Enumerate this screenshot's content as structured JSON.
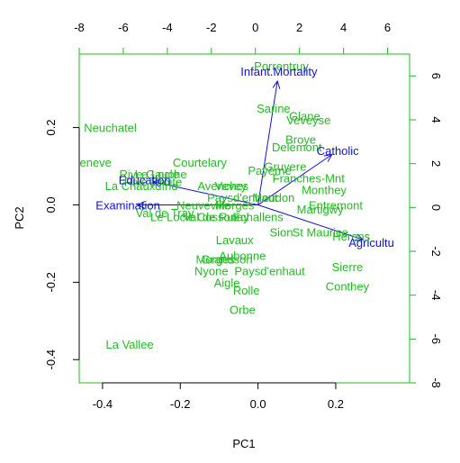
{
  "chart_data": {
    "type": "scatter",
    "title": "",
    "xlabel": "PC1",
    "ylabel": "PC2",
    "xlim": [
      -0.46,
      0.39
    ],
    "ylim": [
      -0.46,
      0.39
    ],
    "xticks": [
      -0.4,
      -0.2,
      0.0,
      0.2
    ],
    "yticks": [
      -0.4,
      -0.2,
      0.0,
      0.2
    ],
    "xtick_labels": [
      "-0.4",
      "-0.2",
      "0.0",
      "0.2"
    ],
    "ytick_labels": [
      "-0.4",
      "-0.2",
      "0.0",
      "0.2"
    ],
    "top_axis_lim": [
      -8,
      7
    ],
    "top_ticks": [
      -8,
      -6,
      -4,
      -2,
      0,
      2,
      4,
      6
    ],
    "top_tick_labels": [
      "-8",
      "-6",
      "-4",
      "-2",
      "0",
      "2",
      "4",
      "6"
    ],
    "right_axis_lim": [
      -8,
      7
    ],
    "right_ticks": [
      -8,
      -6,
      -4,
      -2,
      0,
      2,
      4,
      6
    ],
    "right_tick_labels": [
      "-8",
      "-6",
      "-4",
      "-2",
      "0",
      "2",
      "4",
      "6"
    ],
    "grid": false,
    "observation_color": "#22bb22",
    "variable_color": "#1111dd",
    "secondary_axis_color": "#22bb22",
    "observations": [
      {
        "label": "Neuchatel",
        "x": -0.38,
        "y": 0.2
      },
      {
        "label": "V. De Geneve",
        "x": -0.47,
        "y": 0.11
      },
      {
        "label": "Le Locle",
        "x": -0.26,
        "y": 0.08
      },
      {
        "label": "Rive Gauche",
        "x": -0.27,
        "y": 0.08
      },
      {
        "label": "Rive Droite",
        "x": -0.27,
        "y": 0.06
      },
      {
        "label": "La Chauxdfnd",
        "x": -0.3,
        "y": 0.05
      },
      {
        "label": "Avenches",
        "x": -0.09,
        "y": 0.05
      },
      {
        "label": "Vevey",
        "x": -0.07,
        "y": 0.05
      },
      {
        "label": "Courtelary",
        "x": -0.15,
        "y": 0.11
      },
      {
        "label": "Paysd'enhaut",
        "x": -0.04,
        "y": 0.02
      },
      {
        "label": "Payerne",
        "x": 0.03,
        "y": 0.09
      },
      {
        "label": "Gruyere",
        "x": 0.07,
        "y": 0.1
      },
      {
        "label": "Franches-Mnt",
        "x": 0.13,
        "y": 0.07
      },
      {
        "label": "Porrentruy",
        "x": 0.06,
        "y": 0.36
      },
      {
        "label": "Sarine",
        "x": 0.04,
        "y": 0.25
      },
      {
        "label": "Glane",
        "x": 0.12,
        "y": 0.23
      },
      {
        "label": "Veveyse",
        "x": 0.13,
        "y": 0.22
      },
      {
        "label": "Broye",
        "x": 0.11,
        "y": 0.17
      },
      {
        "label": "Delemont",
        "x": 0.1,
        "y": 0.15
      },
      {
        "label": "Monthey",
        "x": 0.17,
        "y": 0.04
      },
      {
        "label": "Moudon",
        "x": 0.04,
        "y": 0.02
      },
      {
        "label": "Entremont",
        "x": 0.2,
        "y": 0.0
      },
      {
        "label": "Martigwy",
        "x": 0.16,
        "y": -0.01
      },
      {
        "label": "Conthey",
        "x": 0.23,
        "y": -0.21
      },
      {
        "label": "Sierre",
        "x": 0.23,
        "y": -0.16
      },
      {
        "label": "Herens",
        "x": 0.24,
        "y": -0.08
      },
      {
        "label": "St Maurice",
        "x": 0.16,
        "y": -0.07
      },
      {
        "label": "Sion",
        "x": 0.06,
        "y": -0.07
      },
      {
        "label": "Neuveville",
        "x": -0.14,
        "y": 0.0
      },
      {
        "label": "Morges",
        "x": -0.06,
        "y": 0.0
      },
      {
        "label": "Cossonay",
        "x": -0.09,
        "y": -0.03
      },
      {
        "label": "Echallens",
        "x": 0.0,
        "y": -0.03
      },
      {
        "label": "Val de Ruz",
        "x": -0.12,
        "y": -0.03
      },
      {
        "label": "Val de Trav",
        "x": -0.24,
        "y": -0.02
      },
      {
        "label": "Le Locle",
        "x": -0.22,
        "y": -0.03
      },
      {
        "label": "Lavaux",
        "x": -0.06,
        "y": -0.09
      },
      {
        "label": "Aubonne",
        "x": -0.04,
        "y": -0.13
      },
      {
        "label": "Morges",
        "x": -0.11,
        "y": -0.14
      },
      {
        "label": "Grandson",
        "x": -0.08,
        "y": -0.14
      },
      {
        "label": "Nyone",
        "x": -0.12,
        "y": -0.17
      },
      {
        "label": "Paysd'enhaut",
        "x": 0.03,
        "y": -0.17
      },
      {
        "label": "Aigle",
        "x": -0.08,
        "y": -0.2
      },
      {
        "label": "Rolle",
        "x": -0.03,
        "y": -0.22
      },
      {
        "label": "Orbe",
        "x": -0.04,
        "y": -0.27
      },
      {
        "label": "La Vallee",
        "x": -0.33,
        "y": -0.36
      }
    ],
    "variables": [
      {
        "label": "Infant.Mortality",
        "x": 0.05,
        "y": 0.32
      },
      {
        "label": "Catholic",
        "x": 0.19,
        "y": 0.13
      },
      {
        "label": "Agriculture",
        "x": 0.27,
        "y": -0.09
      },
      {
        "label": "Education",
        "x": -0.27,
        "y": 0.06
      },
      {
        "label": "Examination",
        "x": -0.31,
        "y": 0.0
      }
    ],
    "variable_label_text": {
      "Infant.Mortality": "Infant.Mortality",
      "Catholic": "Catholic",
      "Agriculture": "Agricultu",
      "Education": "Education",
      "Examination": "Examination"
    }
  }
}
